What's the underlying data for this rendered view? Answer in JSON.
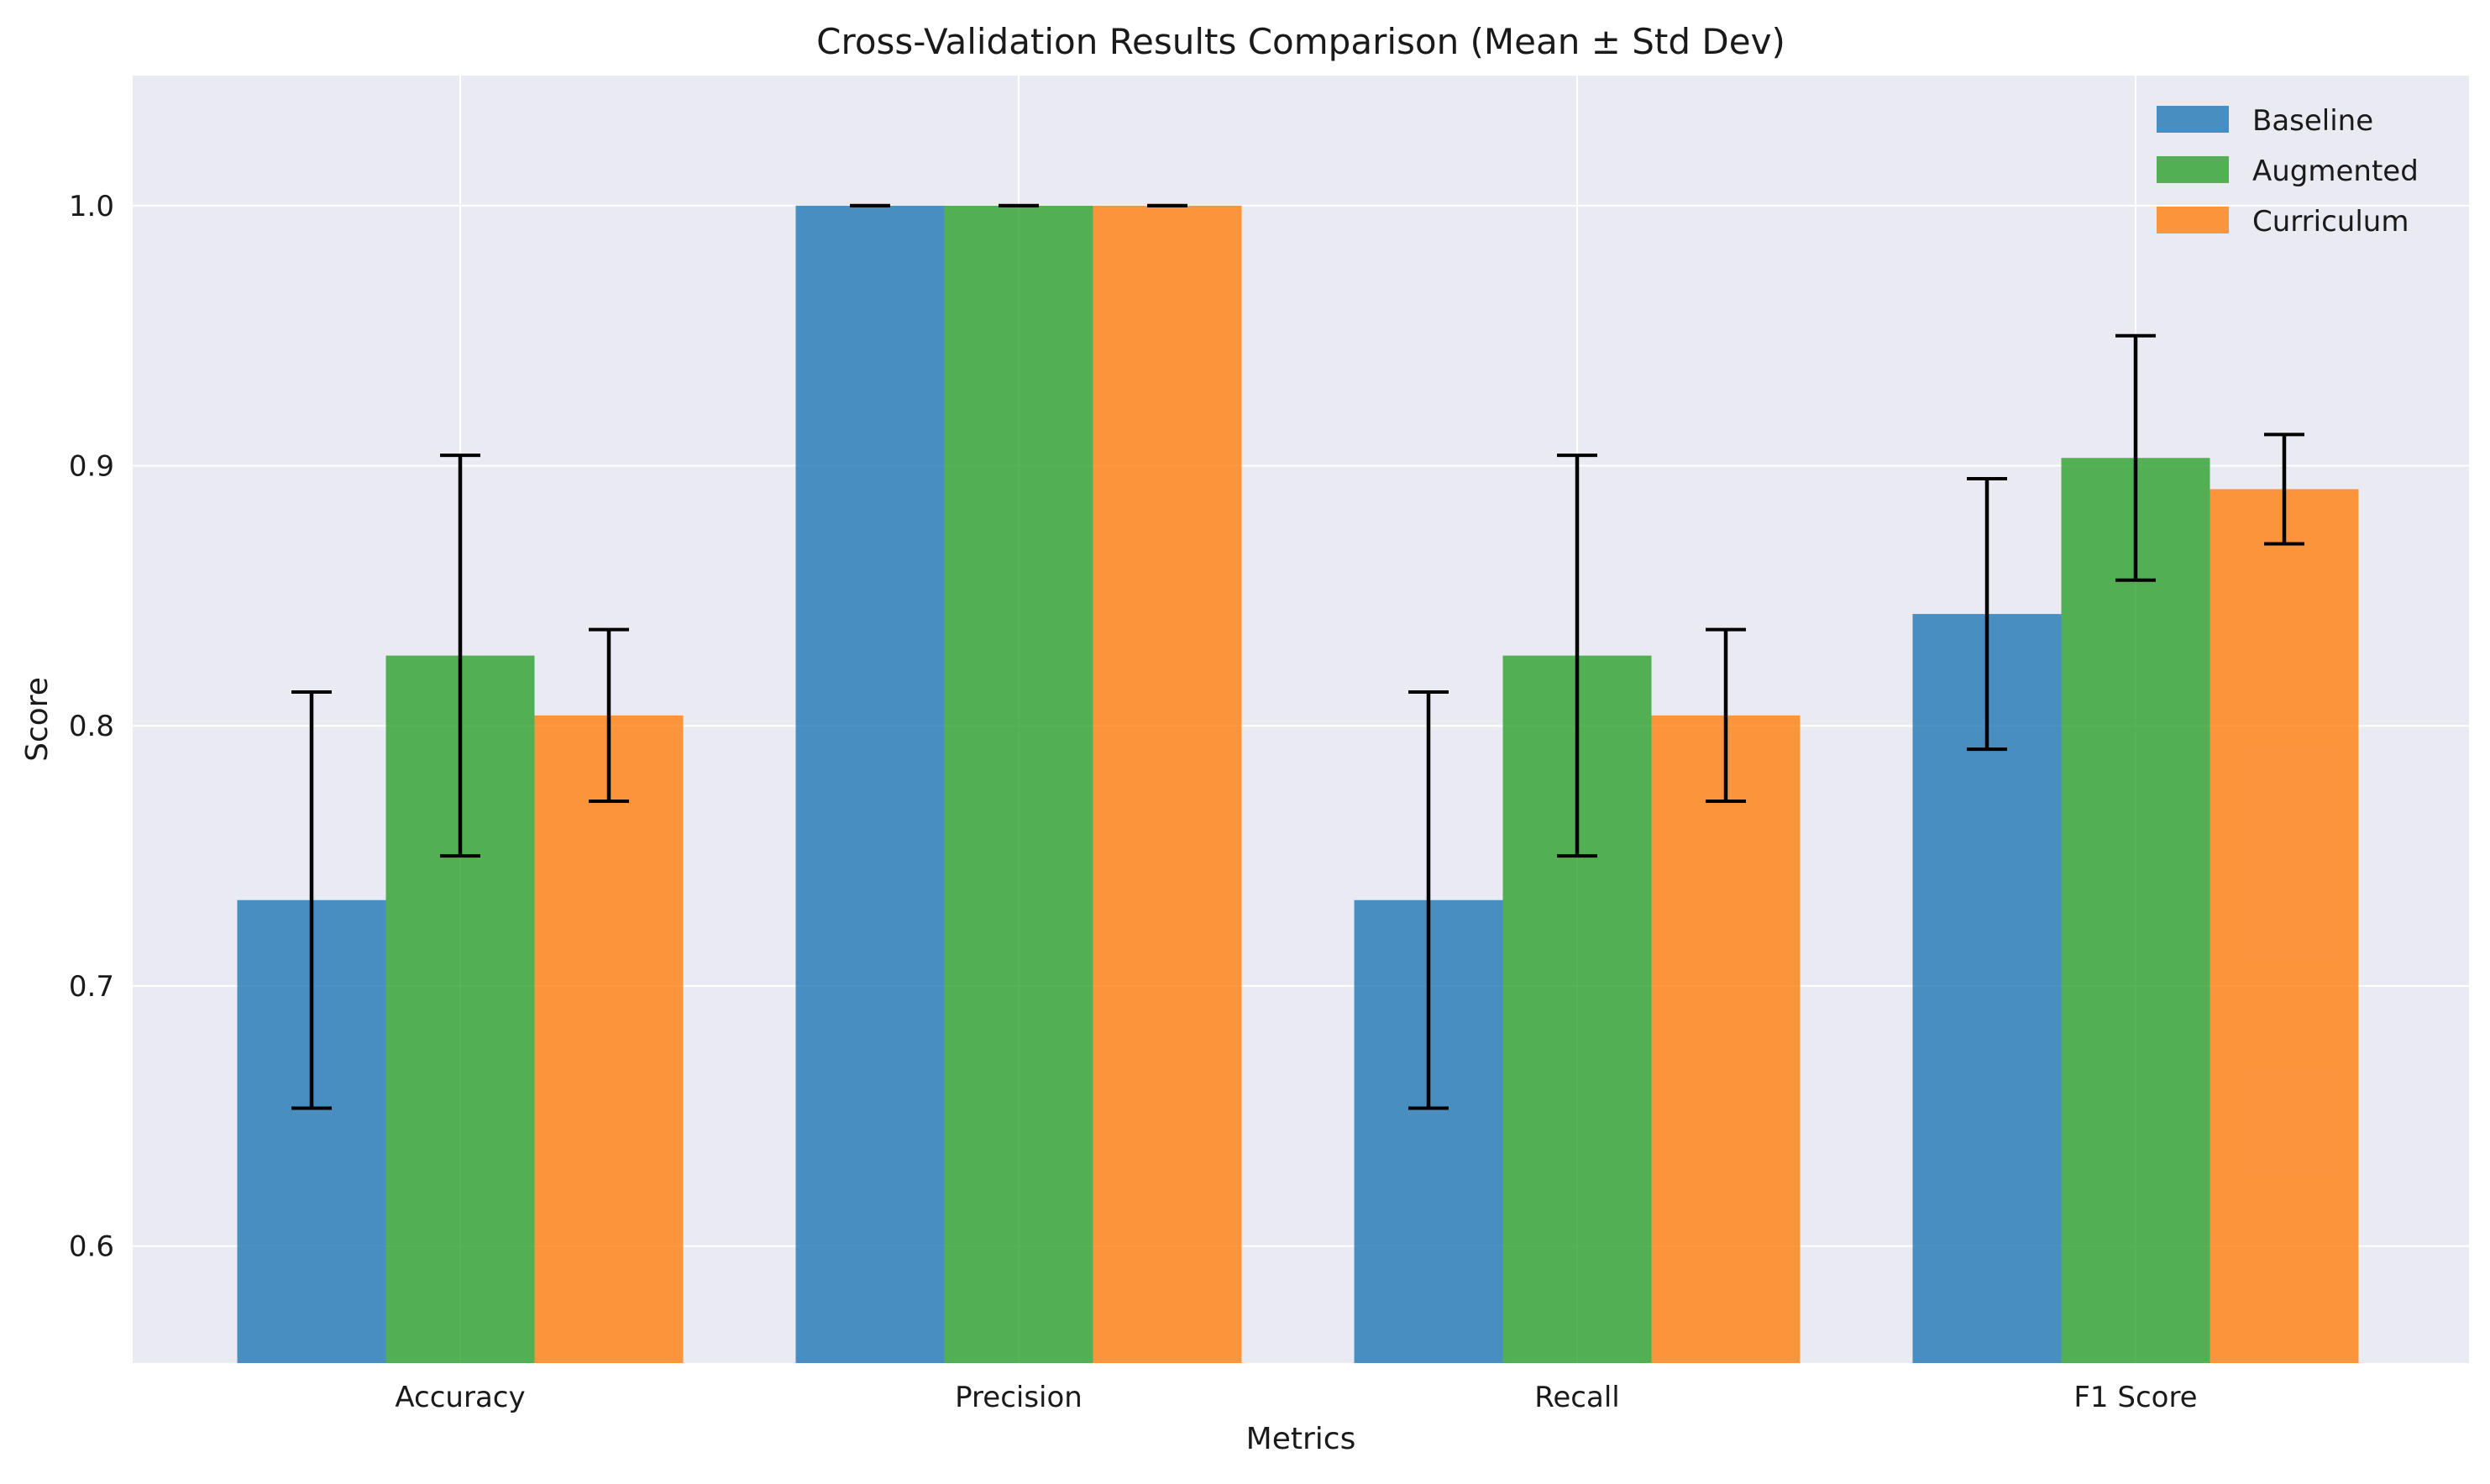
{
  "chart_data": {
    "type": "bar",
    "title": "Cross-Validation Results Comparison (Mean ± Std Dev)",
    "xlabel": "Metrics",
    "ylabel": "Score",
    "categories": [
      "Accuracy",
      "Precision",
      "Recall",
      "F1 Score"
    ],
    "series": [
      {
        "name": "Baseline",
        "color": "#1f77b4",
        "values": [
          0.733,
          1.0,
          0.733,
          0.843
        ],
        "errors": [
          0.08,
          0.0,
          0.08,
          0.052
        ]
      },
      {
        "name": "Augmented",
        "color": "#2ca02c",
        "values": [
          0.827,
          1.0,
          0.827,
          0.903
        ],
        "errors": [
          0.077,
          0.0,
          0.077,
          0.047
        ]
      },
      {
        "name": "Curriculum",
        "color": "#ff7f0e",
        "values": [
          0.804,
          1.0,
          0.804,
          0.891
        ],
        "errors": [
          0.033,
          0.0,
          0.033,
          0.021
        ]
      }
    ],
    "ylim": [
      0.555,
      1.05
    ],
    "yticks": [
      "0.6",
      "0.7",
      "0.8",
      "0.9",
      "1.0"
    ],
    "legend_position": "top-right",
    "grid": true,
    "background_color": "#eaeaf2",
    "gridline_color": "#ffffff",
    "error_bar_color": "#000000"
  }
}
